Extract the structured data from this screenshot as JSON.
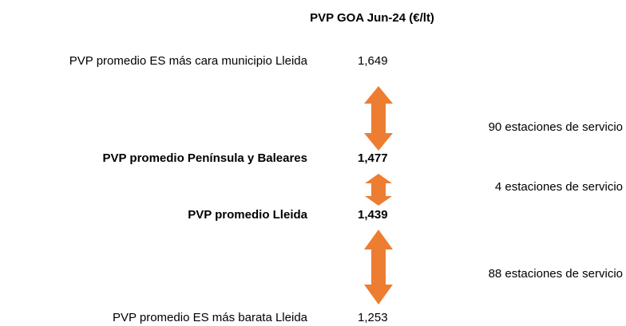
{
  "title": "PVP GOA Jun-24 (€/lt)",
  "rows": [
    {
      "label": "PVP promedio ES más cara municipio Lleida",
      "value": "1,649"
    },
    {
      "label": "PVP promedio Península y Baleares",
      "value": "1,477"
    },
    {
      "label": "PVP promedio Lleida",
      "value": "1,439"
    },
    {
      "label": "PVP promedio ES más barata Lleida",
      "value": "1,253"
    }
  ],
  "arrows": [
    {
      "label": "90 estaciones de servicio"
    },
    {
      "label": "4 estaciones de servicio"
    },
    {
      "label": "88 estaciones de servicio"
    }
  ]
}
